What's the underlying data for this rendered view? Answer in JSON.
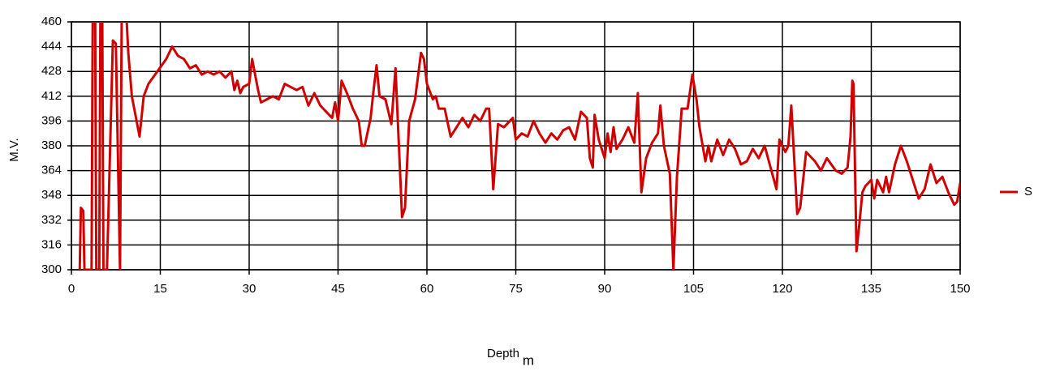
{
  "chart_data": {
    "type": "line",
    "y_label": "M.V.",
    "x_label": "Depth",
    "x_unit": "m",
    "xlim": [
      0,
      150
    ],
    "xticks": [
      0,
      15,
      30,
      45,
      60,
      75,
      90,
      105,
      120,
      135,
      150
    ],
    "ylim": [
      300,
      460
    ],
    "yticks": [
      300,
      316,
      332,
      348,
      364,
      380,
      396,
      412,
      428,
      444,
      460
    ],
    "grid": true,
    "legend": "right",
    "x": [
      1.4,
      1.6,
      2.0,
      2.2,
      3.4,
      3.6,
      4.0,
      4.2,
      4.7,
      4.9,
      5.2,
      5.4,
      6.0,
      7.0,
      7.5,
      8.2,
      8.5,
      9.2,
      9.6,
      10.2,
      11.5,
      12.2,
      13,
      14.5,
      16,
      17,
      18,
      19,
      20,
      21,
      22,
      23,
      24,
      25,
      26,
      27,
      27.5,
      28,
      28.5,
      29,
      30,
      30.5,
      31.5,
      32,
      33,
      34,
      35,
      36,
      37,
      38,
      39,
      40,
      41,
      42,
      43,
      44,
      44.5,
      45,
      45.6,
      46.5,
      47.5,
      48.5,
      49,
      49.5,
      50.5,
      51,
      51.5,
      52,
      53,
      54,
      54.7,
      55.8,
      56.3,
      57,
      58,
      59,
      59.5,
      60,
      61,
      61.5,
      62,
      63,
      64,
      65,
      66,
      67,
      68,
      69,
      70,
      70.5,
      71.2,
      72,
      73,
      74.5,
      75,
      76,
      77,
      78,
      79,
      80,
      81,
      82,
      83,
      84,
      85,
      86,
      87,
      87.5,
      88,
      88.3,
      89,
      90,
      90.5,
      91,
      91.5,
      92,
      93,
      94,
      95,
      95.6,
      96.2,
      97,
      98,
      99,
      99.4,
      100,
      101,
      101.6,
      102.2,
      103,
      104,
      104.8,
      105.5,
      106,
      107,
      107.5,
      108,
      109,
      110,
      111,
      112,
      113,
      114,
      115,
      116,
      117,
      118,
      119,
      119.5,
      120.5,
      121,
      121.5,
      122.5,
      123,
      124,
      125.5,
      126.5,
      127.5,
      129,
      130,
      131,
      131.5,
      131.8,
      132,
      132.5,
      133,
      133.5,
      134,
      135,
      135.5,
      136,
      137,
      137.5,
      138,
      139,
      140,
      141,
      142,
      143,
      144,
      145,
      146,
      147,
      148,
      149,
      149.5,
      150
    ],
    "series": [
      {
        "name": "S",
        "color": "#d00000",
        "values": [
          300,
          340,
          338,
          300,
          300,
          470,
          470,
          300,
          300,
          470,
          470,
          300,
          300,
          448,
          446,
          300,
          470,
          470,
          440,
          412,
          386,
          412,
          420,
          428,
          436,
          444,
          438,
          436,
          430,
          432,
          426,
          428,
          426,
          428,
          424,
          428,
          416,
          422,
          414,
          418,
          420,
          436,
          416,
          408,
          410,
          412,
          410,
          420,
          418,
          416,
          418,
          406,
          414,
          406,
          402,
          398,
          408,
          396,
          422,
          414,
          404,
          396,
          380,
          380,
          398,
          416,
          432,
          412,
          410,
          394,
          430,
          334,
          340,
          396,
          410,
          440,
          436,
          420,
          410,
          412,
          404,
          404,
          386,
          392,
          398,
          392,
          400,
          396,
          404,
          404,
          352,
          394,
          392,
          398,
          384,
          388,
          386,
          396,
          388,
          382,
          388,
          384,
          390,
          392,
          384,
          402,
          398,
          372,
          366,
          400,
          384,
          372,
          388,
          376,
          392,
          378,
          384,
          392,
          382,
          414,
          350,
          372,
          382,
          388,
          406,
          380,
          362,
          300,
          360,
          404,
          404,
          426,
          410,
          392,
          370,
          380,
          370,
          384,
          374,
          384,
          378,
          368,
          370,
          378,
          372,
          380,
          366,
          352,
          384,
          376,
          380,
          406,
          336,
          340,
          376,
          370,
          364,
          372,
          364,
          362,
          366,
          386,
          422,
          420,
          312,
          330,
          350,
          354,
          358,
          346,
          358,
          350,
          360,
          350,
          368,
          380,
          370,
          358,
          346,
          352,
          368,
          356,
          360,
          350,
          342,
          344,
          356
        ]
      }
    ]
  }
}
